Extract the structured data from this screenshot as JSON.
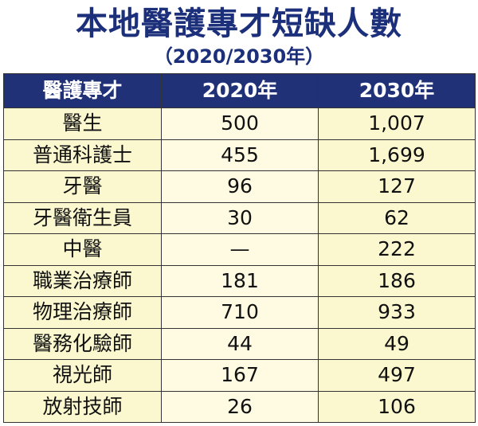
{
  "title": "本地醫護專才短缺人數",
  "subtitle": "（2020/2030年）",
  "colors": {
    "title": "#1c2f7a",
    "header_bg": "#203178",
    "row_bg": "#fbf8cf"
  },
  "chart_data": {
    "type": "table",
    "columns": [
      "醫護專才",
      "2020年",
      "2030年"
    ],
    "rows": [
      {
        "category": "醫生",
        "y2020": "500",
        "y2030": "1,007"
      },
      {
        "category": "普通科護士",
        "y2020": "455",
        "y2030": "1,699"
      },
      {
        "category": "牙醫",
        "y2020": "96",
        "y2030": "127"
      },
      {
        "category": "牙醫衛生員",
        "y2020": "30",
        "y2030": "62"
      },
      {
        "category": "中醫",
        "y2020": "—",
        "y2030": "222"
      },
      {
        "category": "職業治療師",
        "y2020": "181",
        "y2030": "186"
      },
      {
        "category": "物理治療師",
        "y2020": "710",
        "y2030": "933"
      },
      {
        "category": "醫務化驗師",
        "y2020": "44",
        "y2030": "49"
      },
      {
        "category": "視光師",
        "y2020": "167",
        "y2030": "497"
      },
      {
        "category": "放射技師",
        "y2020": "26",
        "y2030": "106"
      }
    ]
  }
}
